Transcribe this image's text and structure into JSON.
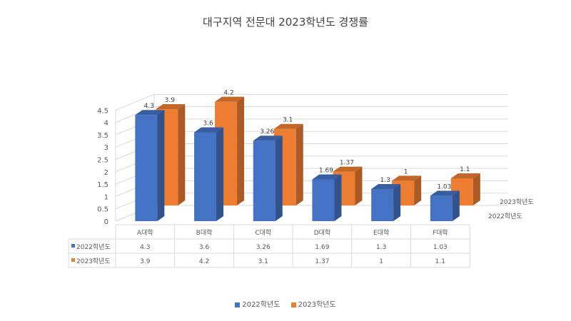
{
  "chart_data": {
    "type": "bar",
    "title": "대구지역 전문대 2023학년도 경쟁률",
    "categories": [
      "A대학",
      "B대학",
      "C대학",
      "D대학",
      "E대학",
      "F대학"
    ],
    "series": [
      {
        "name": "2022학년도",
        "values": [
          4.3,
          3.6,
          3.26,
          1.69,
          1.3,
          1.03
        ],
        "labels": [
          "4.3",
          "3.6",
          "3.26",
          "1.69",
          "1.3",
          "1.03"
        ],
        "color": "#4472C4"
      },
      {
        "name": "2023학년도",
        "values": [
          3.9,
          4.2,
          3.1,
          1.37,
          1,
          1.1
        ],
        "labels": [
          "3.9",
          "4.2",
          "3.1",
          "1.37",
          "1",
          "1.1"
        ],
        "color": "#ED7D31"
      }
    ],
    "ylim": [
      0,
      4.5
    ],
    "yticks": [
      "0",
      "0.5",
      "1",
      "1.5",
      "2",
      "2.5",
      "3",
      "3.5",
      "4",
      "4.5"
    ],
    "grid": true,
    "data_table": true,
    "legend": "bottom"
  }
}
